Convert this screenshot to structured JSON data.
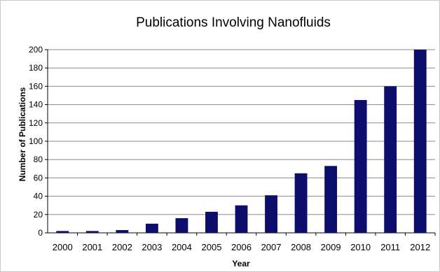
{
  "chart_data": {
    "type": "bar",
    "title": "Publications Involving Nanofluids",
    "xlabel": "Year",
    "ylabel": "Number of Publications",
    "categories": [
      "2000",
      "2001",
      "2002",
      "2003",
      "2004",
      "2005",
      "2006",
      "2007",
      "2008",
      "2009",
      "2010",
      "2011",
      "2012"
    ],
    "values": [
      2,
      2,
      3,
      10,
      16,
      23,
      30,
      41,
      65,
      73,
      145,
      160,
      200
    ],
    "ylim": [
      0,
      200
    ],
    "yticks": [
      0,
      20,
      40,
      60,
      80,
      100,
      120,
      140,
      160,
      180,
      200
    ],
    "grid": true,
    "legend": "none",
    "bar_color": "#0d0d6b"
  }
}
